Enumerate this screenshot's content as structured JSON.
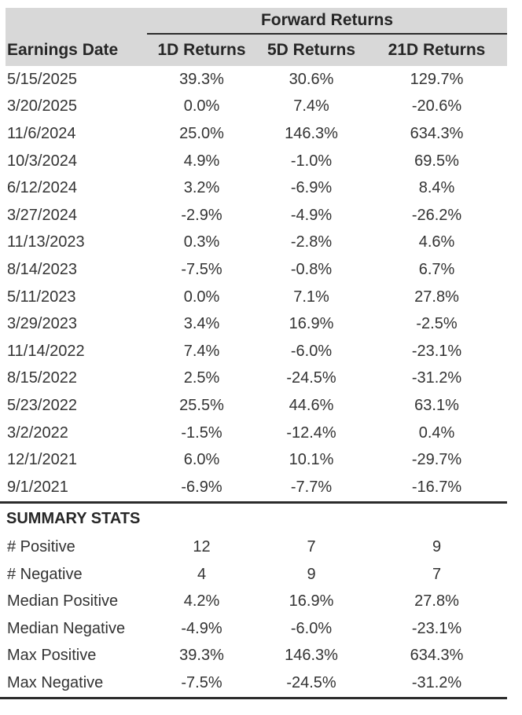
{
  "colors": {
    "header_bg": "#d8d8d8",
    "text": "#333333",
    "rule": "#2b2b2b",
    "page_bg": "#ffffff"
  },
  "chart_data": {
    "type": "table",
    "title": "Forward Returns",
    "header": {
      "spanner": "Forward Returns",
      "columns": [
        "Earnings Date",
        "1D Returns",
        "5D Returns",
        "21D Returns"
      ]
    },
    "rows": [
      {
        "date": "5/15/2025",
        "r1d": "39.3%",
        "r5d": "30.6%",
        "r21d": "129.7%"
      },
      {
        "date": "3/20/2025",
        "r1d": "0.0%",
        "r5d": "7.4%",
        "r21d": "-20.6%"
      },
      {
        "date": "11/6/2024",
        "r1d": "25.0%",
        "r5d": "146.3%",
        "r21d": "634.3%"
      },
      {
        "date": "10/3/2024",
        "r1d": "4.9%",
        "r5d": "-1.0%",
        "r21d": "69.5%"
      },
      {
        "date": "6/12/2024",
        "r1d": "3.2%",
        "r5d": "-6.9%",
        "r21d": "8.4%"
      },
      {
        "date": "3/27/2024",
        "r1d": "-2.9%",
        "r5d": "-4.9%",
        "r21d": "-26.2%"
      },
      {
        "date": "11/13/2023",
        "r1d": "0.3%",
        "r5d": "-2.8%",
        "r21d": "4.6%"
      },
      {
        "date": "8/14/2023",
        "r1d": "-7.5%",
        "r5d": "-0.8%",
        "r21d": "6.7%"
      },
      {
        "date": "5/11/2023",
        "r1d": "0.0%",
        "r5d": "7.1%",
        "r21d": "27.8%"
      },
      {
        "date": "3/29/2023",
        "r1d": "3.4%",
        "r5d": "16.9%",
        "r21d": "-2.5%"
      },
      {
        "date": "11/14/2022",
        "r1d": "7.4%",
        "r5d": "-6.0%",
        "r21d": "-23.1%"
      },
      {
        "date": "8/15/2022",
        "r1d": "2.5%",
        "r5d": "-24.5%",
        "r21d": "-31.2%"
      },
      {
        "date": "5/23/2022",
        "r1d": "25.5%",
        "r5d": "44.6%",
        "r21d": "63.1%"
      },
      {
        "date": "3/2/2022",
        "r1d": "-1.5%",
        "r5d": "-12.4%",
        "r21d": "0.4%"
      },
      {
        "date": "12/1/2021",
        "r1d": "6.0%",
        "r5d": "10.1%",
        "r21d": "-29.7%"
      },
      {
        "date": "9/1/2021",
        "r1d": "-6.9%",
        "r5d": "-7.7%",
        "r21d": "-16.7%"
      }
    ],
    "summary": {
      "title": "SUMMARY STATS",
      "rows": [
        {
          "label": "# Positive",
          "r1d": "12",
          "r5d": "7",
          "r21d": "9"
        },
        {
          "label": "# Negative",
          "r1d": "4",
          "r5d": "9",
          "r21d": "7"
        },
        {
          "label": "Median Positive",
          "r1d": "4.2%",
          "r5d": "16.9%",
          "r21d": "27.8%"
        },
        {
          "label": "Median Negative",
          "r1d": "-4.9%",
          "r5d": "-6.0%",
          "r21d": "-23.1%"
        },
        {
          "label": "Max Positive",
          "r1d": "39.3%",
          "r5d": "146.3%",
          "r21d": "634.3%"
        },
        {
          "label": "Max Negative",
          "r1d": "-7.5%",
          "r5d": "-24.5%",
          "r21d": "-31.2%"
        }
      ]
    }
  }
}
